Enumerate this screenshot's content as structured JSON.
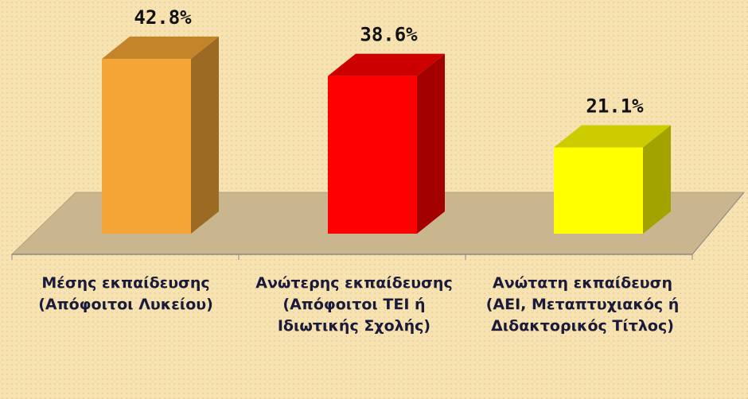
{
  "chart_data": {
    "type": "bar3d",
    "categories": [
      "Μέσης εκπαίδευσης (Απόφοιτοι Λυκείου)",
      "Ανώτερης εκπαίδευσης (Απόφοιτοι ΤΕΙ ή Ιδιωτικής Σχολής)",
      "Ανώτατη εκπαίδευση (ΑΕΙ, Μεταπτυχιακός ή Διδακτορικός Τίτλος)"
    ],
    "values": [
      42.8,
      38.6,
      21.1
    ],
    "value_labels": [
      "42.8%",
      "38.6%",
      "21.1%"
    ],
    "colors": [
      "#f4a535",
      "#ff0000",
      "#ffff00"
    ]
  }
}
